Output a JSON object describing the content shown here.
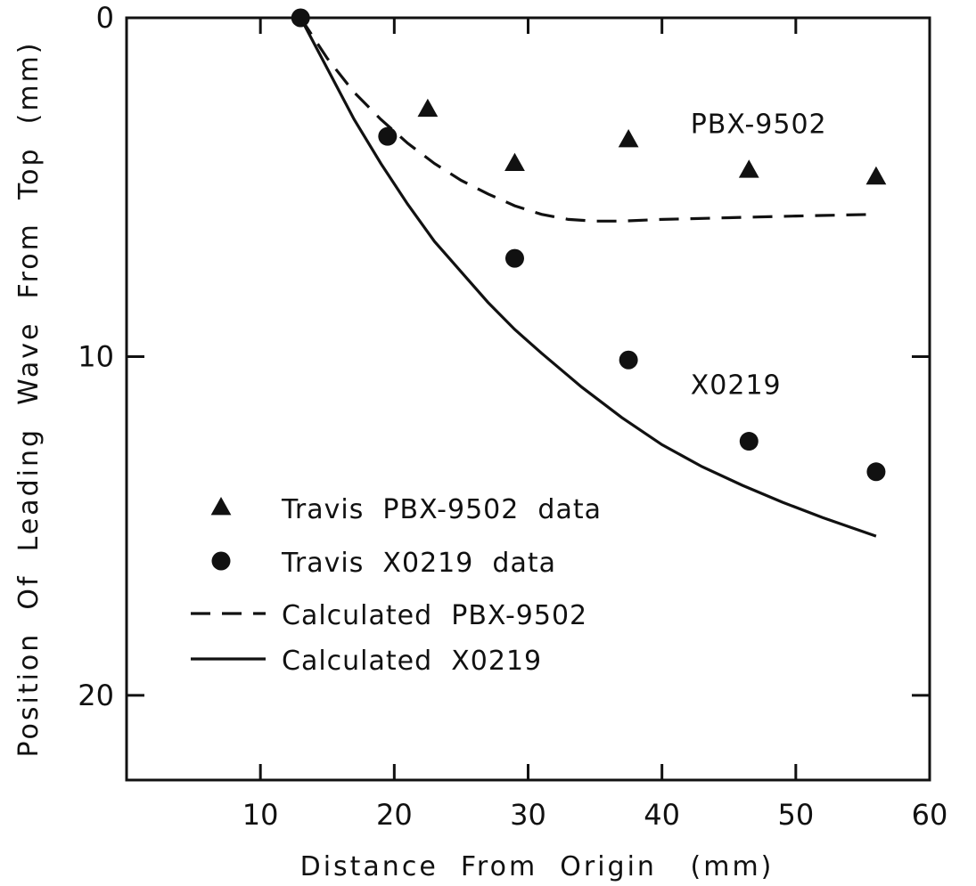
{
  "chart_data": {
    "type": "scatter",
    "xlabel": "Distance  From  Origin   (mm)",
    "ylabel": "Position  Of  Leading  Wave  From  Top  (mm)",
    "xlim": [
      0,
      60
    ],
    "ylim": [
      0,
      22.5
    ],
    "y_inverted": true,
    "x_ticks": [
      10,
      20,
      30,
      40,
      50,
      60
    ],
    "y_ticks": [
      0,
      10,
      20
    ],
    "grid": false,
    "legend_position": "lower-left",
    "annotations": [
      {
        "text": "PBX-9502",
        "x": 44,
        "y": 3.3
      },
      {
        "text": "X0219",
        "x": 44,
        "y": 11.0
      }
    ],
    "series": [
      {
        "name": "Travis  PBX-9502  data",
        "kind": "scatter",
        "marker": "triangle",
        "x": [
          13,
          22.5,
          29,
          37.5,
          46.5,
          56
        ],
        "y": [
          0,
          2.7,
          4.3,
          3.6,
          4.5,
          4.7
        ]
      },
      {
        "name": "Travis  X0219  data",
        "kind": "scatter",
        "marker": "circle",
        "x": [
          13,
          19.5,
          29,
          37.5,
          46.5,
          56
        ],
        "y": [
          0,
          3.5,
          7.1,
          10.1,
          12.5,
          13.4
        ]
      },
      {
        "name": "Calculated  PBX-9502",
        "kind": "line",
        "dash": "dashed",
        "x": [
          13,
          15,
          17,
          19,
          21,
          23,
          25,
          27,
          29,
          31,
          33,
          35,
          37,
          40,
          45,
          50,
          56
        ],
        "y": [
          0,
          1.2,
          2.2,
          3.0,
          3.7,
          4.3,
          4.8,
          5.2,
          5.55,
          5.8,
          5.95,
          6.0,
          6.0,
          5.95,
          5.9,
          5.85,
          5.8
        ]
      },
      {
        "name": "Calculated  X0219",
        "kind": "line",
        "dash": "solid",
        "x": [
          13,
          15,
          17,
          19,
          21,
          23,
          25,
          27,
          29,
          31,
          34,
          37,
          40,
          43,
          46,
          49,
          52,
          56
        ],
        "y": [
          0,
          1.5,
          3.0,
          4.3,
          5.5,
          6.6,
          7.5,
          8.4,
          9.2,
          9.9,
          10.9,
          11.8,
          12.6,
          13.25,
          13.8,
          14.3,
          14.75,
          15.3
        ]
      }
    ]
  }
}
